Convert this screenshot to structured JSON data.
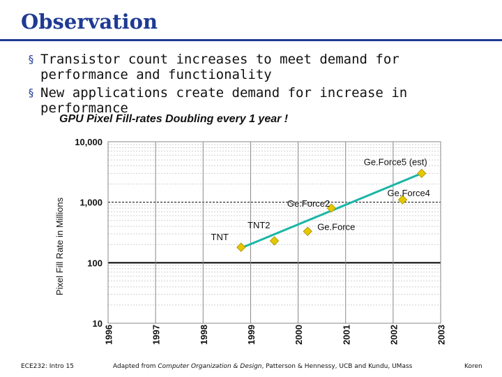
{
  "slide": {
    "title": "Observation",
    "bullets": [
      "Transistor count increases to meet demand for performance and functionality",
      "New applications create demand for increase in performance"
    ],
    "bullet_glyph": "§"
  },
  "chart_data": {
    "type": "line",
    "title": "GPU Pixel Fill-rates Doubling every 1 year !",
    "xlabel": "",
    "ylabel": "Pixel Fill Rate in Millions",
    "yscale": "log",
    "ylim": [
      10,
      10000
    ],
    "y_ticks": [
      10,
      100,
      1000,
      10000
    ],
    "y_tick_labels": [
      "10",
      "100",
      "1,000",
      "10,000"
    ],
    "xlim": [
      1996,
      2003
    ],
    "x_ticks": [
      "1996",
      "1997",
      "1998",
      "1999",
      "2000",
      "2001",
      "2002",
      "2003"
    ],
    "points": [
      {
        "label": "TNT",
        "x": 1998.8,
        "y": 180
      },
      {
        "label": "TNT2",
        "x": 1999.5,
        "y": 230
      },
      {
        "label": "Ge.Force",
        "x": 2000.2,
        "y": 330
      },
      {
        "label": "Ge.Force2",
        "x": 2000.7,
        "y": 800
      },
      {
        "label": "Ge.Force4",
        "x": 2002.2,
        "y": 1100
      },
      {
        "label": "Ge.Force5 (est)",
        "x": 2002.6,
        "y": 3000
      }
    ],
    "trend": {
      "x": [
        1998.8,
        2002.6
      ],
      "y": [
        175,
        3000
      ]
    },
    "colors": {
      "marker": "#e6c800",
      "marker_edge": "#b59a00",
      "trend": "#1ab6a6",
      "grid": "#000000",
      "frame": "#888888"
    }
  },
  "footer": {
    "left": "ECE232: Intro 15",
    "center_pre": "Adapted from ",
    "center_italic": "Computer Organization & Design",
    "center_post": ", Patterson & Hennessy, UCB and Kundu, UMass",
    "right": "Koren"
  }
}
